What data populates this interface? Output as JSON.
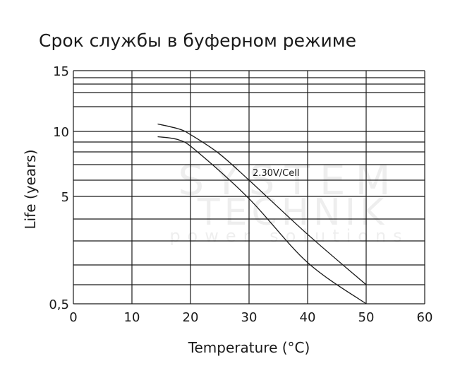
{
  "chart_data": {
    "type": "line",
    "title": "Срок службы в буферном режиме",
    "xlabel": "Temperature (°C)",
    "ylabel": "Life (years)",
    "xlim": [
      0,
      60
    ],
    "ylim": [
      0.5,
      15
    ],
    "y_scale": "non-linear (log-like)",
    "x_ticks": [
      "0",
      "10",
      "20",
      "30",
      "40",
      "50",
      "60"
    ],
    "x_tick_values": [
      0,
      10,
      20,
      30,
      40,
      50,
      60
    ],
    "y_ticks": [
      "0,5",
      "5",
      "10",
      "15"
    ],
    "y_tick_values": [
      0.5,
      5,
      10,
      15
    ],
    "y_gridlines": [
      0.5,
      1,
      2,
      3,
      4,
      5,
      6,
      7,
      8,
      9,
      10,
      11,
      12,
      13,
      14,
      15
    ],
    "grid": true,
    "annotation": "2.30V/Cell",
    "series": [
      {
        "points": [
          [
            14.4,
            10.3
          ],
          [
            18,
            10.1
          ],
          [
            20,
            9.7
          ],
          [
            24.8,
            7.9
          ],
          [
            30,
            6.0
          ],
          [
            40,
            3.3
          ],
          [
            50,
            1.0
          ]
        ]
      },
      {
        "points": [
          [
            14.4,
            9.5
          ],
          [
            18,
            9.2
          ],
          [
            21,
            8.1
          ],
          [
            30,
            4.9
          ],
          [
            40,
            2.1
          ],
          [
            50,
            0.5
          ]
        ]
      }
    ],
    "line_color": "#1a1a1a"
  },
  "watermark": {
    "line1": "SYSTEM",
    "line2": "TECHNIK",
    "line3": "power solutions"
  }
}
